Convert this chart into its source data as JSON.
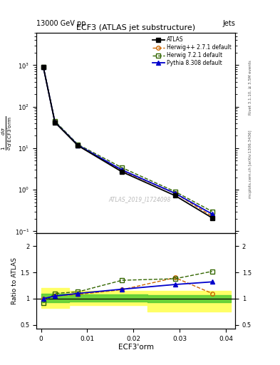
{
  "title": "ECF3 (ATLAS jet substructure)",
  "top_left_label": "13000 GeV pp",
  "top_right_label": "Jets",
  "ylabel_ratio": "Ratio to ATLAS",
  "xlabel": "ECF3'orm",
  "watermark": "ATLAS_2019_I1724098",
  "right_label_top": "Rivet 3.1.10, ≥ 3.5M events",
  "right_label_bot": "mcplots.cern.ch [arXiv:1306.3436]",
  "x_data": [
    0.0005,
    0.003,
    0.008,
    0.0175,
    0.029,
    0.037
  ],
  "atlas_y": [
    900,
    42,
    11.5,
    2.7,
    0.72,
    0.21
  ],
  "herwig_pp_y": [
    900,
    43,
    11.8,
    2.85,
    0.82,
    0.23
  ],
  "herwig72_y": [
    900,
    45,
    12.3,
    3.4,
    0.9,
    0.3
  ],
  "pythia_y": [
    900,
    42.5,
    11.8,
    3.0,
    0.82,
    0.26
  ],
  "ratio_herwig_pp": [
    1.0,
    1.05,
    1.08,
    1.17,
    1.4,
    1.1
  ],
  "ratio_herwig72": [
    0.92,
    1.1,
    1.13,
    1.35,
    1.38,
    1.52
  ],
  "ratio_pythia": [
    1.0,
    1.05,
    1.1,
    1.18,
    1.27,
    1.32
  ],
  "band_x_edges": [
    0.0,
    0.002,
    0.006,
    0.013,
    0.023,
    0.033,
    0.041
  ],
  "yellow_band_lo": [
    0.82,
    0.82,
    0.87,
    0.87,
    0.76,
    0.76,
    0.76
  ],
  "yellow_band_hi": [
    1.2,
    1.2,
    1.15,
    1.15,
    1.15,
    1.15,
    1.15
  ],
  "green_band_lo": [
    0.93,
    0.93,
    0.95,
    0.95,
    0.93,
    0.93,
    0.93
  ],
  "green_band_hi": [
    1.1,
    1.1,
    1.08,
    1.08,
    1.06,
    1.06,
    1.06
  ],
  "color_atlas": "#000000",
  "color_herwig_pp": "#cc6600",
  "color_herwig72": "#336600",
  "color_pythia": "#0000cc",
  "color_yellow": "#ffff66",
  "color_green": "#55cc33",
  "ylim_main": [
    0.09,
    6000
  ],
  "ylim_ratio": [
    0.43,
    2.25
  ],
  "xlim": [
    -0.001,
    0.042
  ]
}
